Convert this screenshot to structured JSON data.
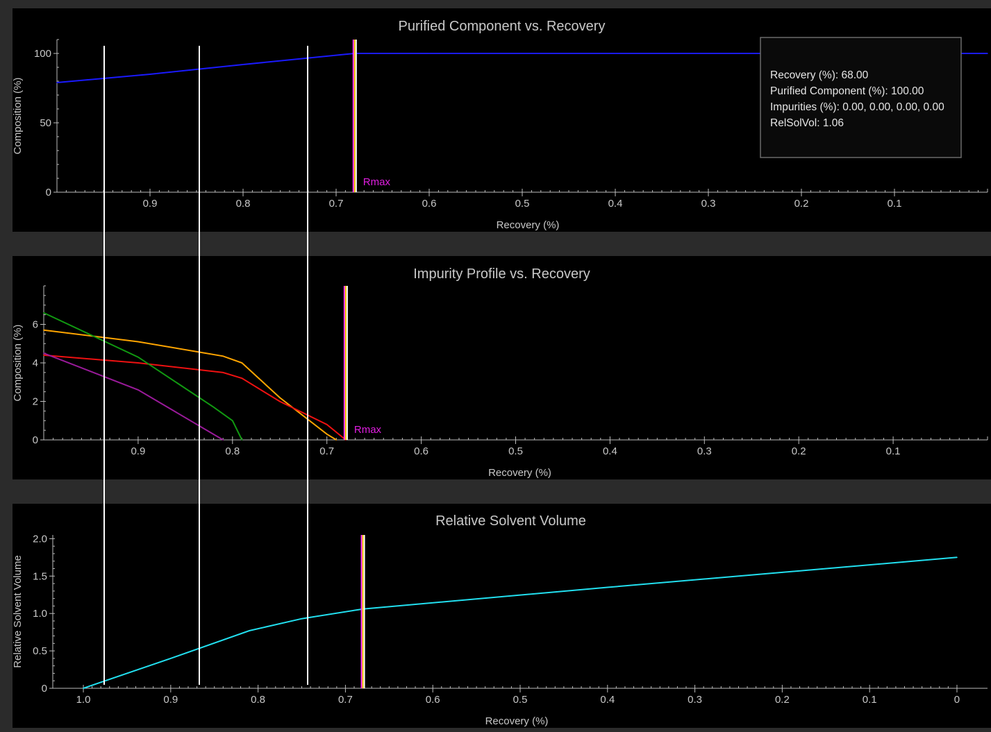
{
  "colors": {
    "frame": "#2b2b2b",
    "panel": "#000000",
    "axis": "#bdbdbd",
    "title": "#c8c8c8",
    "label": "#c8c8c8",
    "rmax_label": "#e01ee0",
    "rmax_line": [
      "#ff33ff",
      "#ffd700",
      "#ffffff"
    ],
    "cursor_line": "#ffffff",
    "tooltip_border": "#6a6a6a",
    "tooltip_bg": "#0a0a0a",
    "tooltip_text": "#e6e6e6"
  },
  "cursor_recoveries": [
    0.935,
    0.835,
    0.72
  ],
  "chart_data": [
    {
      "id": "purified",
      "type": "line",
      "title": "Purified Component vs. Recovery",
      "xlabel": "Recovery (%)",
      "ylabel": "Composition (%)",
      "xlim": [
        1.0,
        0.0
      ],
      "ylim": [
        0,
        110
      ],
      "x_ticks": [
        0.9,
        0.8,
        0.7,
        0.6,
        0.5,
        0.4,
        0.3,
        0.2,
        0.1
      ],
      "x_tick_labels": [
        "0.9",
        "0.8",
        "0.7",
        "0.6",
        "0.5",
        "0.4",
        "0.3",
        "0.2",
        "0.1"
      ],
      "y_ticks": [
        0,
        50,
        100
      ],
      "y_tick_labels": [
        "0",
        "50",
        "100"
      ],
      "rmax": 0.68,
      "rmax_label": "Rmax",
      "series": [
        {
          "color": "#1a1aff",
          "x": [
            1.0,
            0.9,
            0.8,
            0.68,
            0.6,
            0.4,
            0.2,
            0.0
          ],
          "y": [
            79,
            85,
            92,
            100,
            100,
            100,
            100,
            100
          ]
        }
      ],
      "tooltip": [
        "Recovery (%): 68.00",
        "Purified Component (%): 100.00",
        "Impurities (%): 0.00, 0.00, 0.00, 0.00",
        "RelSolVol: 1.06"
      ]
    },
    {
      "id": "impurity",
      "type": "line",
      "title": "Impurity Profile vs. Recovery",
      "xlabel": "Recovery (%)",
      "ylabel": "Composition (%)",
      "xlim": [
        1.0,
        0.0
      ],
      "ylim": [
        0,
        8
      ],
      "x_ticks": [
        0.9,
        0.8,
        0.7,
        0.6,
        0.5,
        0.4,
        0.3,
        0.2,
        0.1
      ],
      "x_tick_labels": [
        "0.9",
        "0.8",
        "0.7",
        "0.6",
        "0.5",
        "0.4",
        "0.3",
        "0.2",
        "0.1"
      ],
      "y_ticks": [
        0,
        2,
        4,
        6
      ],
      "y_tick_labels": [
        "0",
        "2",
        "4",
        "6"
      ],
      "rmax": 0.68,
      "rmax_label": "Rmax",
      "series": [
        {
          "color": "#ffa500",
          "x": [
            1.0,
            0.9,
            0.81,
            0.79,
            0.75,
            0.7,
            0.69
          ],
          "y": [
            5.7,
            5.1,
            4.35,
            4.0,
            2.2,
            0.3,
            0.0
          ]
        },
        {
          "color": "#ee1111",
          "x": [
            1.0,
            0.9,
            0.81,
            0.79,
            0.75,
            0.7,
            0.68
          ],
          "y": [
            4.4,
            4.0,
            3.5,
            3.2,
            2.0,
            0.8,
            0.0
          ]
        },
        {
          "color": "#119911",
          "x": [
            1.0,
            0.9,
            0.82,
            0.8,
            0.79
          ],
          "y": [
            6.6,
            4.3,
            1.7,
            1.0,
            0.0
          ]
        },
        {
          "color": "#9a1a9a",
          "x": [
            1.0,
            0.9,
            0.81
          ],
          "y": [
            4.5,
            2.6,
            0.0
          ]
        }
      ]
    },
    {
      "id": "solvent",
      "type": "line",
      "title": "Relative Solvent Volume",
      "xlabel": "Recovery (%)",
      "ylabel": "Relative Solvent Volume",
      "xlim": [
        1.035,
        -0.035
      ],
      "ylim": [
        0,
        2.05
      ],
      "x_ticks": [
        1.0,
        0.9,
        0.8,
        0.7,
        0.6,
        0.5,
        0.4,
        0.3,
        0.2,
        0.1,
        0.0
      ],
      "x_tick_labels": [
        "1.0",
        "0.9",
        "0.8",
        "0.7",
        "0.6",
        "0.5",
        "0.4",
        "0.3",
        "0.2",
        "0.1",
        "0"
      ],
      "y_ticks": [
        0,
        0.5,
        1.0,
        1.5,
        2.0
      ],
      "y_tick_labels": [
        "0",
        "0.5",
        "1.0",
        "1.5",
        "2.0"
      ],
      "rmax": 0.68,
      "rmax_label": "",
      "series": [
        {
          "color": "#22e0f0",
          "x": [
            1.0,
            0.9,
            0.81,
            0.75,
            0.68,
            0.4,
            0.2,
            0.0
          ],
          "y": [
            0.0,
            0.4,
            0.77,
            0.93,
            1.06,
            1.35,
            1.55,
            1.75
          ]
        }
      ]
    }
  ]
}
